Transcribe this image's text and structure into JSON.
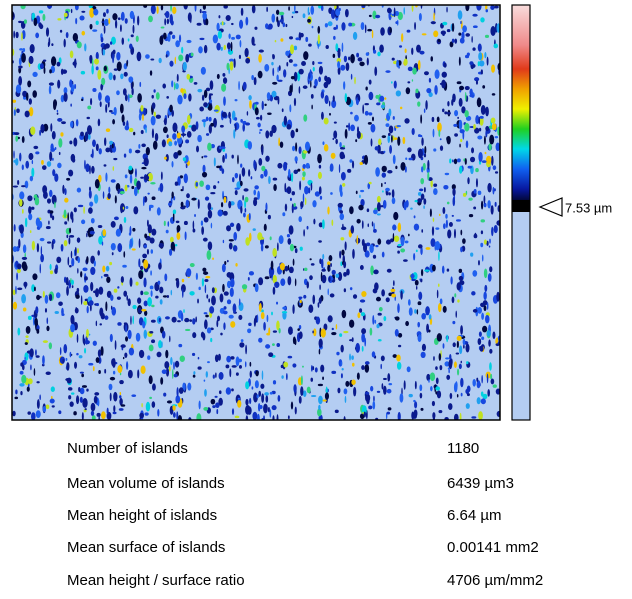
{
  "colorbar": {
    "marker_label": "7.53 µm"
  },
  "table": {
    "rows": [
      [
        "Number of islands",
        "1180"
      ],
      [
        "Mean volume of islands",
        "6439 µm3"
      ],
      [
        "Mean height of islands",
        "6.64 µm"
      ],
      [
        "Mean surface of islands",
        "0.00141 mm2"
      ],
      [
        "Mean height / surface ratio",
        "4706 µm/mm2"
      ]
    ]
  }
}
